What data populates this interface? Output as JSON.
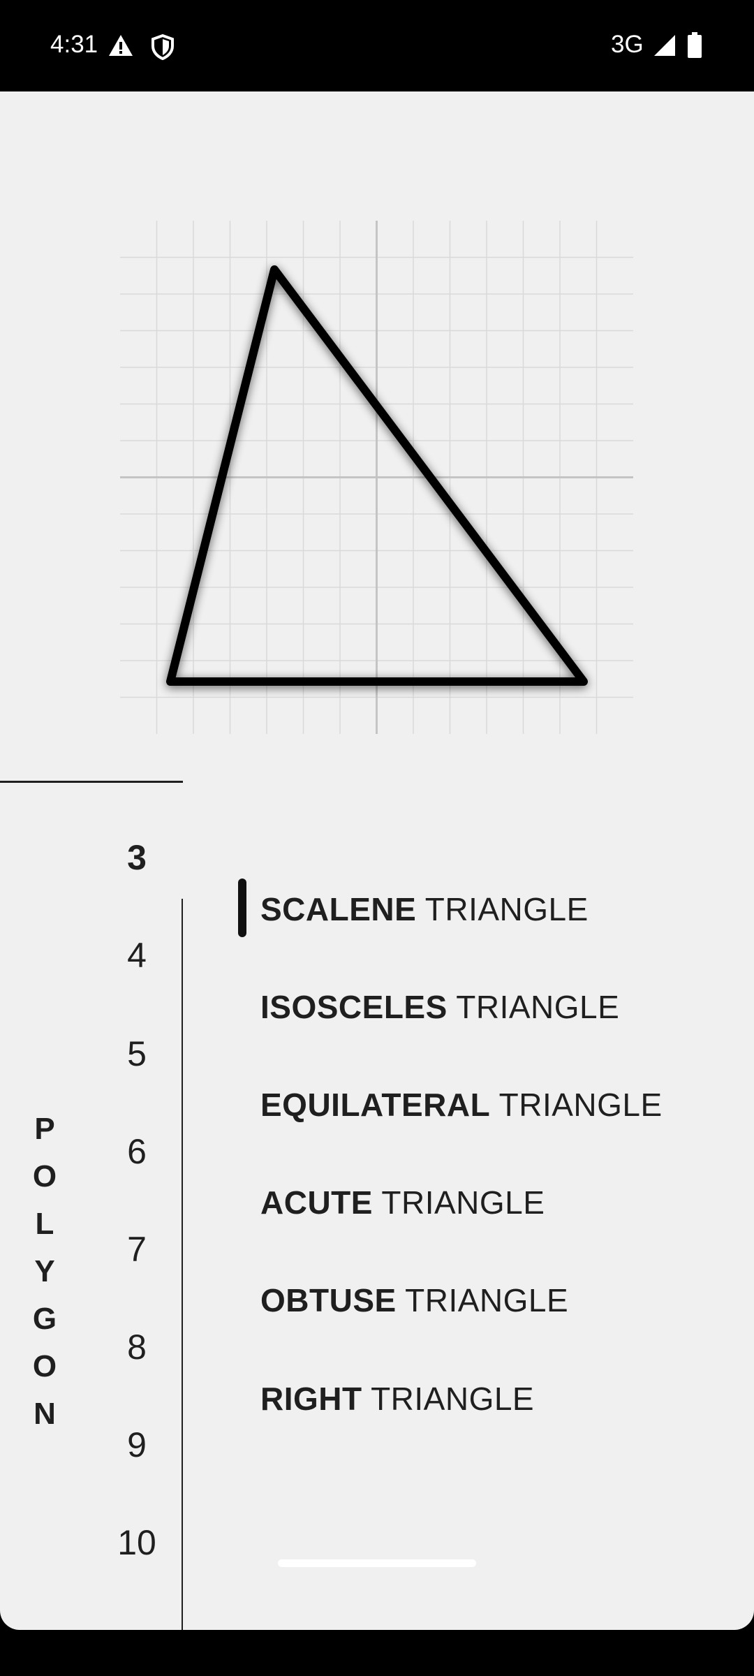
{
  "status_bar": {
    "time": "4:31",
    "network": "3G",
    "icons": [
      "warning-icon",
      "shield-icon",
      "signal-icon",
      "battery-icon"
    ]
  },
  "figure": {
    "shape": "scalene-triangle",
    "stroke_color": "#000000",
    "grid_color": "#d6d6d6"
  },
  "side_label": [
    "P",
    "O",
    "L",
    "Y",
    "G",
    "O",
    "N"
  ],
  "counts": [
    "3",
    "4",
    "5",
    "6",
    "7",
    "8",
    "9",
    "10"
  ],
  "selected_count": "3",
  "types": [
    {
      "bold": "SCALENE",
      "rest": "TRIANGLE",
      "selected": true
    },
    {
      "bold": "ISOSCELES",
      "rest": "TRIANGLE",
      "selected": false
    },
    {
      "bold": "EQUILATERAL",
      "rest": "TRIANGLE",
      "selected": false
    },
    {
      "bold": "ACUTE",
      "rest": "TRIANGLE",
      "selected": false
    },
    {
      "bold": "OBTUSE",
      "rest": "TRIANGLE",
      "selected": false
    },
    {
      "bold": "RIGHT",
      "rest": "TRIANGLE",
      "selected": false
    }
  ]
}
